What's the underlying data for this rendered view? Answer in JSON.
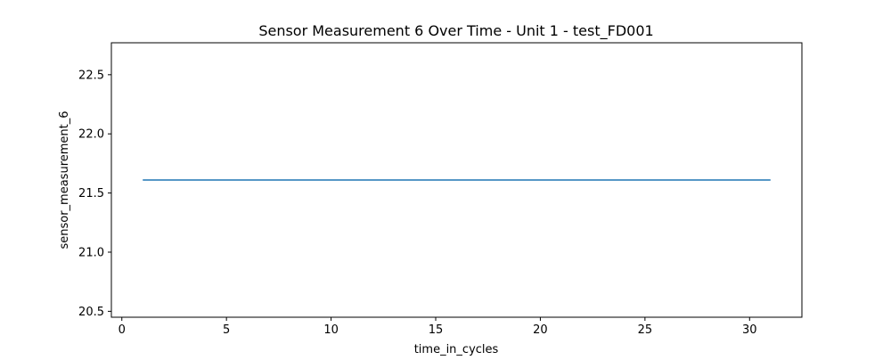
{
  "chart_data": {
    "type": "line",
    "title": "Sensor Measurement 6 Over Time - Unit 1 - test_FD001",
    "xlabel": "time_in_cycles",
    "ylabel": "sensor_measurement_6",
    "xlim": [
      -0.5,
      32.5
    ],
    "ylim": [
      20.45,
      22.77
    ],
    "xticks": [
      0,
      5,
      10,
      15,
      20,
      25,
      30
    ],
    "yticks": [
      20.5,
      21.0,
      21.5,
      22.0,
      22.5
    ],
    "xtick_labels": [
      "0",
      "5",
      "10",
      "15",
      "20",
      "25",
      "30"
    ],
    "ytick_labels": [
      "20.5",
      "21.0",
      "21.5",
      "22.0",
      "22.5"
    ],
    "grid": false,
    "series": [
      {
        "name": "sensor_measurement_6",
        "color": "#1f77b4",
        "x": [
          1,
          2,
          3,
          4,
          5,
          6,
          7,
          8,
          9,
          10,
          11,
          12,
          13,
          14,
          15,
          16,
          17,
          18,
          19,
          20,
          21,
          22,
          23,
          24,
          25,
          26,
          27,
          28,
          29,
          30,
          31
        ],
        "y": [
          21.61,
          21.61,
          21.61,
          21.61,
          21.61,
          21.61,
          21.61,
          21.61,
          21.61,
          21.61,
          21.61,
          21.61,
          21.61,
          21.61,
          21.61,
          21.61,
          21.61,
          21.61,
          21.61,
          21.61,
          21.61,
          21.61,
          21.61,
          21.61,
          21.61,
          21.61,
          21.61,
          21.61,
          21.61,
          21.61,
          21.61
        ]
      }
    ]
  }
}
